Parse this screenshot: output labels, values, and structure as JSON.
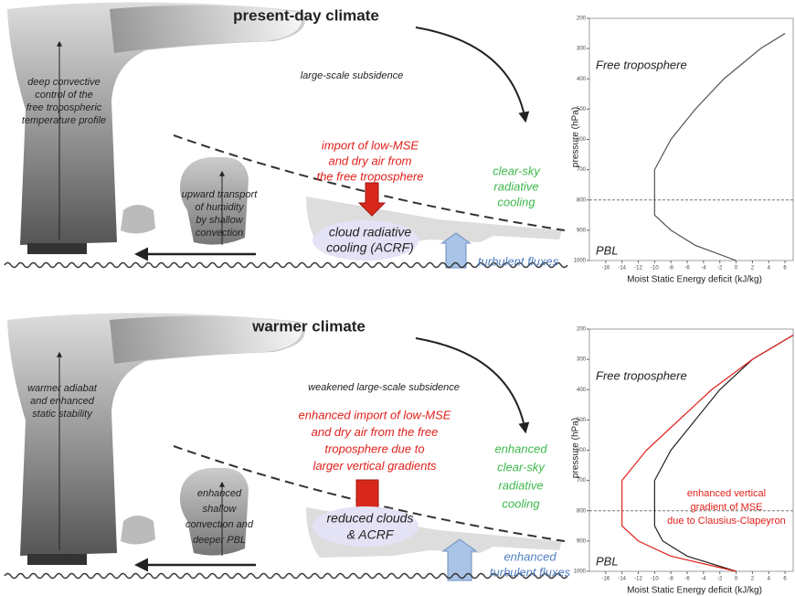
{
  "panels": [
    {
      "title": "present-day climate",
      "convection_note": [
        "deep convective",
        "control of the",
        "free tropospheric",
        "temperature profile"
      ],
      "subsidence": [
        "large-scale subsidence"
      ],
      "import": [
        "import of low-MSE",
        "and dry air from",
        "the free troposphere"
      ],
      "shallow": [
        "upward transport",
        "of humidity",
        "by shallow",
        "convection"
      ],
      "cloud": [
        "cloud radiative",
        "cooling (ACRF)"
      ],
      "clear_sky": [
        "clear-sky",
        "radiative",
        "cooling"
      ],
      "fluxes": [
        "turbulent fluxes"
      ],
      "profile": {
        "free_trop": "Free troposphere",
        "pbl": "PBL",
        "y_label": "pressure  (hPa)",
        "x_label": "Moist Static Energy deficit (kJ/kg)",
        "xlim": [
          -18,
          7
        ],
        "ylim": [
          200,
          1000
        ],
        "xticks": [
          -16,
          -14,
          -12,
          -10,
          -8,
          -6,
          -4,
          -2,
          0,
          2,
          4,
          6
        ],
        "yticks": [
          200,
          300,
          400,
          500,
          600,
          700,
          800,
          900,
          1000
        ],
        "pbl_top": 800,
        "series": [
          {
            "color": "#555555",
            "pressure": [
              1000,
              950,
              900,
              850,
              800,
              700,
              600,
              500,
              400,
              300,
              250
            ],
            "deficit": [
              0,
              -5,
              -8,
              -10,
              -10,
              -10,
              -8,
              -5,
              -1.5,
              3,
              6
            ]
          }
        ]
      }
    },
    {
      "title": "warmer climate",
      "convection_note": [
        "warmer adiabat",
        "and enhanced",
        "static stability"
      ],
      "subsidence": [
        "weakened large-scale subsidence"
      ],
      "import": [
        "enhanced import of low-MSE",
        "and dry air from the free",
        "troposphere due to",
        "larger vertical gradients"
      ],
      "shallow": [
        "enhanced",
        "shallow",
        "convection and",
        "deeper PBL"
      ],
      "cloud": [
        "reduced clouds",
        "& ACRF"
      ],
      "clear_sky": [
        "enhanced",
        "clear-sky",
        "radiative",
        "cooling"
      ],
      "fluxes": [
        "enhanced",
        "turbulent fluxes"
      ],
      "profile": {
        "free_trop": "Free troposphere",
        "pbl": "PBL",
        "y_label": "pressure  (hPa)",
        "x_label": "Moist Static Energy deficit (kJ/kg)",
        "annotation": [
          "enhanced vertical",
          "gradient of MSE",
          "due to Clausius-Clapeyron"
        ],
        "xlim": [
          -18,
          7
        ],
        "ylim": [
          200,
          1000
        ],
        "xticks": [
          -16,
          -14,
          -12,
          -10,
          -8,
          -6,
          -4,
          -2,
          0,
          2,
          4,
          6
        ],
        "yticks": [
          200,
          300,
          400,
          500,
          600,
          700,
          800,
          900,
          1000
        ],
        "pbl_top": 800,
        "series": [
          {
            "color": "#222222",
            "pressure": [
              1000,
              950,
              900,
              850,
              800,
              700,
              600,
              500,
              400,
              300,
              220
            ],
            "deficit": [
              0,
              -6,
              -9,
              -10,
              -10,
              -10,
              -8,
              -5,
              -2,
              2,
              7
            ]
          },
          {
            "color": "#e0201a",
            "pressure": [
              1000,
              950,
              900,
              850,
              800,
              700,
              600,
              500,
              400,
              300,
              220
            ],
            "deficit": [
              0,
              -8,
              -12,
              -14,
              -14,
              -14,
              -11,
              -7,
              -3,
              2,
              7
            ]
          }
        ]
      }
    }
  ]
}
